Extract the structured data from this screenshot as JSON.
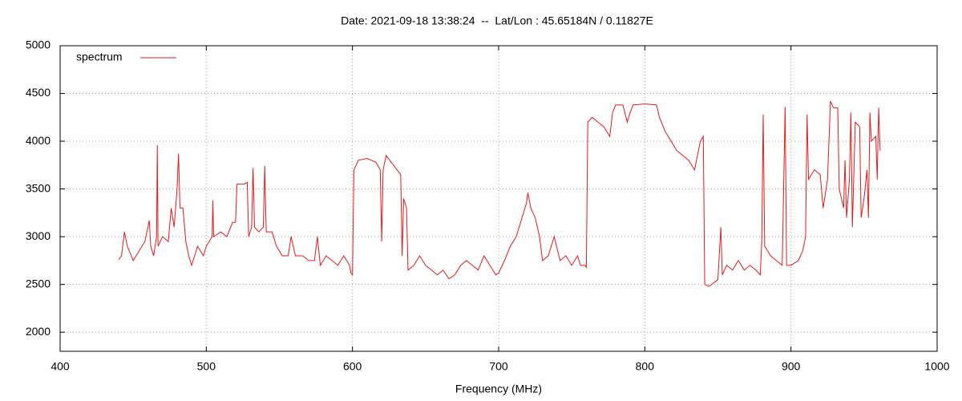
{
  "chart_data": {
    "type": "line",
    "title": "Date: 2021-09-18 13:38:24  --  Lat/Lon : 45.65184N / 0.11827E",
    "x_label": "Frequency (MHz)",
    "x": [
      440,
      442,
      444,
      446,
      450,
      454,
      458,
      461,
      462,
      464,
      466,
      466.5,
      467,
      470,
      474,
      476,
      478,
      480,
      481,
      482,
      484,
      486,
      488,
      490,
      494,
      498,
      500,
      504,
      504.5,
      505,
      510,
      514,
      518,
      520,
      521,
      526,
      528,
      529,
      531,
      532,
      533,
      536,
      539,
      540,
      541,
      545,
      548,
      552,
      556,
      558,
      561,
      566,
      570,
      574,
      576,
      578,
      582,
      586,
      590,
      594,
      598,
      599,
      600,
      601,
      604,
      610,
      616,
      619,
      620,
      621,
      623,
      628,
      633,
      634,
      635,
      637,
      638,
      642,
      646,
      650,
      654,
      658,
      662,
      666,
      670,
      674,
      678,
      682,
      686,
      690,
      694,
      696,
      698,
      700,
      704,
      708,
      712,
      716,
      719,
      720,
      722,
      725,
      728,
      730,
      734,
      738,
      742,
      746,
      750,
      754,
      756,
      759,
      760,
      761,
      764,
      768,
      772,
      776,
      778,
      780,
      785,
      788,
      790,
      792,
      800,
      808,
      810,
      814,
      818,
      822,
      826,
      830,
      834,
      838,
      840,
      841,
      844,
      850,
      852,
      853,
      856,
      860,
      864,
      868,
      872,
      876,
      879,
      880,
      881,
      882,
      886,
      890,
      894,
      896,
      897,
      900,
      905,
      908,
      910,
      911,
      912,
      916,
      920,
      922,
      925,
      927,
      929,
      932,
      933,
      936,
      937,
      938,
      940,
      941,
      942,
      944,
      947,
      948,
      950,
      952,
      953,
      954,
      955,
      958,
      959,
      960,
      961
    ],
    "series": [
      {
        "name": "spectrum",
        "color": "#e41a1c",
        "values": [
          2760,
          2800,
          3050,
          2900,
          2750,
          2850,
          2950,
          3170,
          2900,
          2800,
          3000,
          3960,
          2900,
          3000,
          2950,
          3300,
          3100,
          3500,
          3870,
          3300,
          3300,
          2950,
          2800,
          2700,
          2900,
          2800,
          2900,
          3000,
          3380,
          3000,
          3050,
          3000,
          3150,
          3150,
          3550,
          3550,
          3570,
          3000,
          3100,
          3720,
          3100,
          3050,
          3100,
          3740,
          3050,
          3050,
          2900,
          2800,
          2800,
          3000,
          2800,
          2800,
          2750,
          2750,
          3000,
          2700,
          2800,
          2750,
          2700,
          2800,
          2700,
          2620,
          2600,
          3700,
          3800,
          3820,
          3780,
          3700,
          2950,
          3700,
          3850,
          3750,
          3650,
          2800,
          3400,
          3300,
          2650,
          2700,
          2800,
          2700,
          2650,
          2600,
          2650,
          2560,
          2600,
          2700,
          2750,
          2700,
          2650,
          2800,
          2700,
          2650,
          2600,
          2620,
          2750,
          2900,
          3000,
          3200,
          3350,
          3460,
          3300,
          3200,
          3000,
          2750,
          2800,
          3000,
          2750,
          2800,
          2700,
          2800,
          2700,
          2700,
          2680,
          4200,
          4250,
          4200,
          4150,
          4050,
          4300,
          4380,
          4380,
          4200,
          4300,
          4380,
          4390,
          4380,
          4250,
          4100,
          4000,
          3900,
          3850,
          3800,
          3700,
          4000,
          4050,
          2500,
          2480,
          2550,
          3100,
          2600,
          2700,
          2650,
          2750,
          2650,
          2700,
          2650,
          2600,
          2950,
          4280,
          2900,
          2800,
          2750,
          2700,
          4360,
          2700,
          2700,
          2750,
          2850,
          3000,
          4280,
          3600,
          3700,
          3650,
          3300,
          3600,
          4420,
          4350,
          4350,
          3500,
          3300,
          3800,
          3200,
          3600,
          4300,
          3100,
          4200,
          4150,
          3200,
          3400,
          3700,
          3200,
          4300,
          4000,
          4050,
          3600,
          4350,
          3900
        ]
      }
    ],
    "xlim": [
      400,
      1000
    ],
    "xticks": [
      400,
      500,
      600,
      700,
      800,
      900,
      1000
    ],
    "ylim": [
      1800,
      5000
    ],
    "yticks": [
      2000,
      2500,
      3000,
      3500,
      4000,
      4500,
      5000
    ],
    "grid": true,
    "legend": "top-left"
  }
}
